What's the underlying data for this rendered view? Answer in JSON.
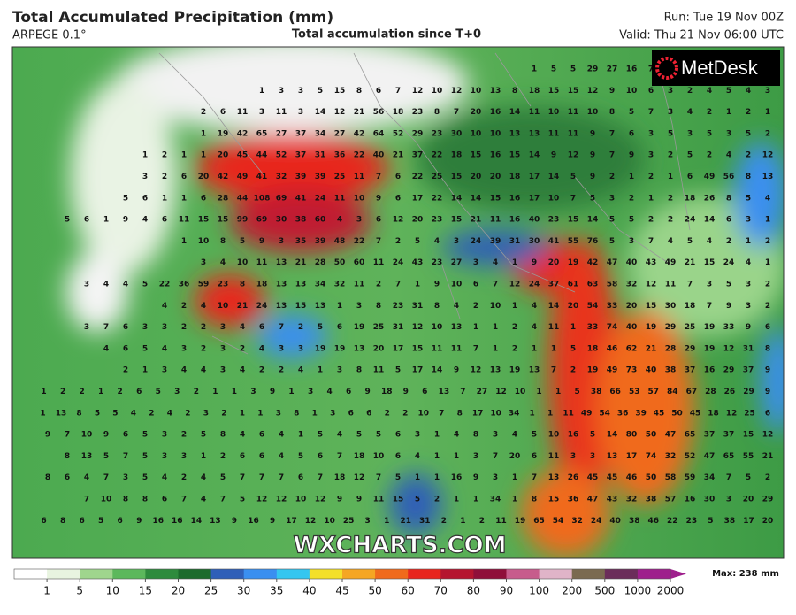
{
  "header": {
    "title": "Total Accumulated Precipitation (mm)",
    "model": "ARPEGE 0.1°",
    "subtitle": "Total accumulation since T+0",
    "run": "Run: Tue 19 Nov 00Z",
    "valid": "Valid: Thu 21 Nov 06:00 UTC"
  },
  "logo": "MetDesk",
  "watermark": "WXCHARTS.COM",
  "map_values": [
    [
      1,
      5,
      5,
      29,
      27,
      16,
      7,
      10,
      17,
      24,
      15,
      10,
      10
    ],
    [
      1,
      3,
      3,
      5,
      15,
      8,
      6,
      7,
      12,
      10,
      12,
      10,
      13,
      8,
      18,
      15,
      15,
      12,
      9,
      10,
      6,
      3,
      2,
      4,
      5,
      4,
      3
    ],
    [
      2,
      6,
      11,
      3,
      11,
      3,
      14,
      12,
      21,
      56,
      18,
      23,
      8,
      7,
      20,
      16,
      14,
      11,
      10,
      11,
      10,
      8,
      5,
      7,
      3,
      4,
      2,
      1,
      2,
      1
    ],
    [
      1,
      19,
      42,
      65,
      27,
      37,
      34,
      27,
      42,
      64,
      52,
      29,
      23,
      30,
      10,
      10,
      13,
      13,
      11,
      11,
      9,
      7,
      6,
      3,
      5,
      3,
      5,
      3,
      5,
      2
    ],
    [
      1,
      2,
      1,
      1,
      20,
      45,
      44,
      52,
      37,
      31,
      36,
      22,
      40,
      21,
      37,
      22,
      18,
      15,
      16,
      15,
      14,
      9,
      12,
      9,
      7,
      9,
      3,
      2,
      5,
      2,
      4,
      2,
      12
    ],
    [
      3,
      2,
      6,
      20,
      42,
      49,
      41,
      32,
      39,
      39,
      25,
      11,
      7,
      6,
      22,
      25,
      15,
      20,
      20,
      18,
      17,
      14,
      5,
      9,
      2,
      1,
      2,
      1,
      6,
      49,
      56,
      8,
      13
    ],
    [
      5,
      6,
      1,
      1,
      6,
      28,
      44,
      108,
      69,
      41,
      24,
      11,
      10,
      9,
      6,
      17,
      22,
      14,
      14,
      15,
      16,
      17,
      10,
      7,
      5,
      3,
      2,
      1,
      2,
      18,
      26,
      8,
      5,
      4
    ],
    [
      5,
      6,
      1,
      9,
      4,
      6,
      11,
      15,
      15,
      99,
      69,
      30,
      38,
      60,
      4,
      3,
      6,
      12,
      20,
      23,
      15,
      21,
      11,
      16,
      40,
      23,
      15,
      14,
      5,
      5,
      2,
      2,
      24,
      14,
      6,
      3,
      1
    ],
    [
      1,
      10,
      8,
      5,
      9,
      3,
      35,
      39,
      48,
      22,
      7,
      2,
      5,
      4,
      3,
      24,
      39,
      31,
      30,
      41,
      55,
      76,
      5,
      3,
      7,
      4,
      5,
      4,
      2,
      1,
      2
    ],
    [
      3,
      4,
      10,
      11,
      13,
      21,
      28,
      50,
      60,
      11,
      24,
      43,
      23,
      27,
      3,
      4,
      1,
      9,
      20,
      19,
      42,
      47,
      40,
      43,
      49,
      21,
      15,
      24,
      4,
      1
    ],
    [
      3,
      4,
      4,
      5,
      22,
      36,
      59,
      23,
      8,
      18,
      13,
      13,
      34,
      32,
      11,
      2,
      7,
      1,
      9,
      10,
      6,
      7,
      12,
      24,
      37,
      61,
      63,
      58,
      32,
      12,
      11,
      7,
      3,
      5,
      3,
      2
    ],
    [
      4,
      2,
      4,
      10,
      21,
      24,
      13,
      15,
      13,
      1,
      3,
      8,
      23,
      31,
      8,
      4,
      2,
      10,
      1,
      4,
      14,
      20,
      54,
      33,
      20,
      15,
      30,
      18,
      7,
      9,
      3,
      2
    ],
    [
      3,
      7,
      6,
      3,
      3,
      2,
      2,
      3,
      4,
      6,
      7,
      2,
      5,
      6,
      19,
      25,
      31,
      12,
      10,
      13,
      1,
      1,
      2,
      4,
      11,
      1,
      33,
      74,
      40,
      19,
      29,
      25,
      19,
      33,
      9,
      6
    ],
    [
      4,
      6,
      5,
      4,
      3,
      2,
      3,
      2,
      4,
      3,
      3,
      19,
      19,
      13,
      20,
      17,
      15,
      11,
      11,
      7,
      1,
      2,
      1,
      1,
      5,
      18,
      46,
      62,
      21,
      28,
      29,
      19,
      12,
      31,
      8
    ],
    [
      2,
      1,
      3,
      4,
      4,
      3,
      4,
      2,
      2,
      4,
      1,
      3,
      8,
      11,
      5,
      17,
      14,
      9,
      12,
      13,
      19,
      13,
      7,
      2,
      19,
      49,
      73,
      40,
      38,
      37,
      16,
      29,
      37,
      9
    ],
    [
      1,
      2,
      2,
      1,
      2,
      6,
      5,
      3,
      2,
      1,
      1,
      3,
      9,
      1,
      3,
      4,
      6,
      9,
      18,
      9,
      6,
      13,
      7,
      27,
      12,
      10,
      1,
      1,
      5,
      38,
      66,
      53,
      57,
      84,
      67,
      28,
      26,
      29,
      9
    ],
    [
      1,
      13,
      8,
      5,
      5,
      4,
      2,
      4,
      2,
      3,
      2,
      1,
      1,
      3,
      8,
      1,
      3,
      6,
      6,
      2,
      2,
      10,
      7,
      8,
      17,
      10,
      34,
      1,
      1,
      11,
      49,
      54,
      36,
      39,
      45,
      50,
      45,
      18,
      12,
      25,
      6
    ],
    [
      9,
      7,
      10,
      9,
      6,
      5,
      3,
      2,
      5,
      8,
      4,
      6,
      4,
      1,
      5,
      4,
      5,
      5,
      6,
      3,
      1,
      4,
      8,
      3,
      4,
      5,
      10,
      16,
      5,
      14,
      80,
      50,
      47,
      65,
      37,
      37,
      15,
      12
    ],
    [
      8,
      13,
      5,
      7,
      5,
      3,
      3,
      1,
      2,
      6,
      6,
      4,
      5,
      6,
      7,
      18,
      10,
      6,
      4,
      1,
      1,
      3,
      7,
      20,
      6,
      11,
      3,
      3,
      13,
      17,
      74,
      32,
      52,
      47,
      65,
      55,
      21
    ],
    [
      8,
      6,
      4,
      7,
      3,
      5,
      4,
      2,
      4,
      5,
      7,
      7,
      7,
      6,
      7,
      18,
      12,
      7,
      5,
      1,
      1,
      16,
      9,
      3,
      1,
      7,
      13,
      26,
      45,
      45,
      46,
      50,
      58,
      59,
      34,
      7,
      5,
      2
    ],
    [
      7,
      10,
      8,
      8,
      6,
      7,
      4,
      7,
      5,
      12,
      12,
      10,
      12,
      9,
      9,
      11,
      15,
      5,
      2,
      1,
      1,
      34,
      1,
      8,
      15,
      36,
      47,
      43,
      32,
      38,
      57,
      16,
      30,
      3,
      20,
      29
    ],
    [
      6,
      8,
      6,
      5,
      6,
      9,
      16,
      16,
      14,
      13,
      9,
      16,
      9,
      17,
      12,
      10,
      25,
      3,
      1,
      21,
      31,
      2,
      1,
      2,
      11,
      19,
      65,
      54,
      32,
      24,
      40,
      38,
      46,
      22,
      23,
      5,
      38,
      17,
      20
    ]
  ],
  "legend": {
    "ticks": [
      1,
      5,
      10,
      15,
      20,
      25,
      30,
      35,
      40,
      45,
      50,
      60,
      70,
      80,
      90,
      100,
      200,
      500,
      1000,
      2000
    ],
    "colors": [
      "#ffffff",
      "#e8f4e0",
      "#9fd58d",
      "#5cb85c",
      "#2e8b3d",
      "#1c6b2c",
      "#2f5fb8",
      "#3a8ff0",
      "#35c6f0",
      "#f4e02a",
      "#f5a623",
      "#f06a1c",
      "#e8261e",
      "#b5152f",
      "#8f0f3a",
      "#c75c8c",
      "#e0b4c8",
      "#7a6a50",
      "#6b2d5a",
      "#9e1f8c"
    ],
    "max": "Max: 238 mm"
  }
}
